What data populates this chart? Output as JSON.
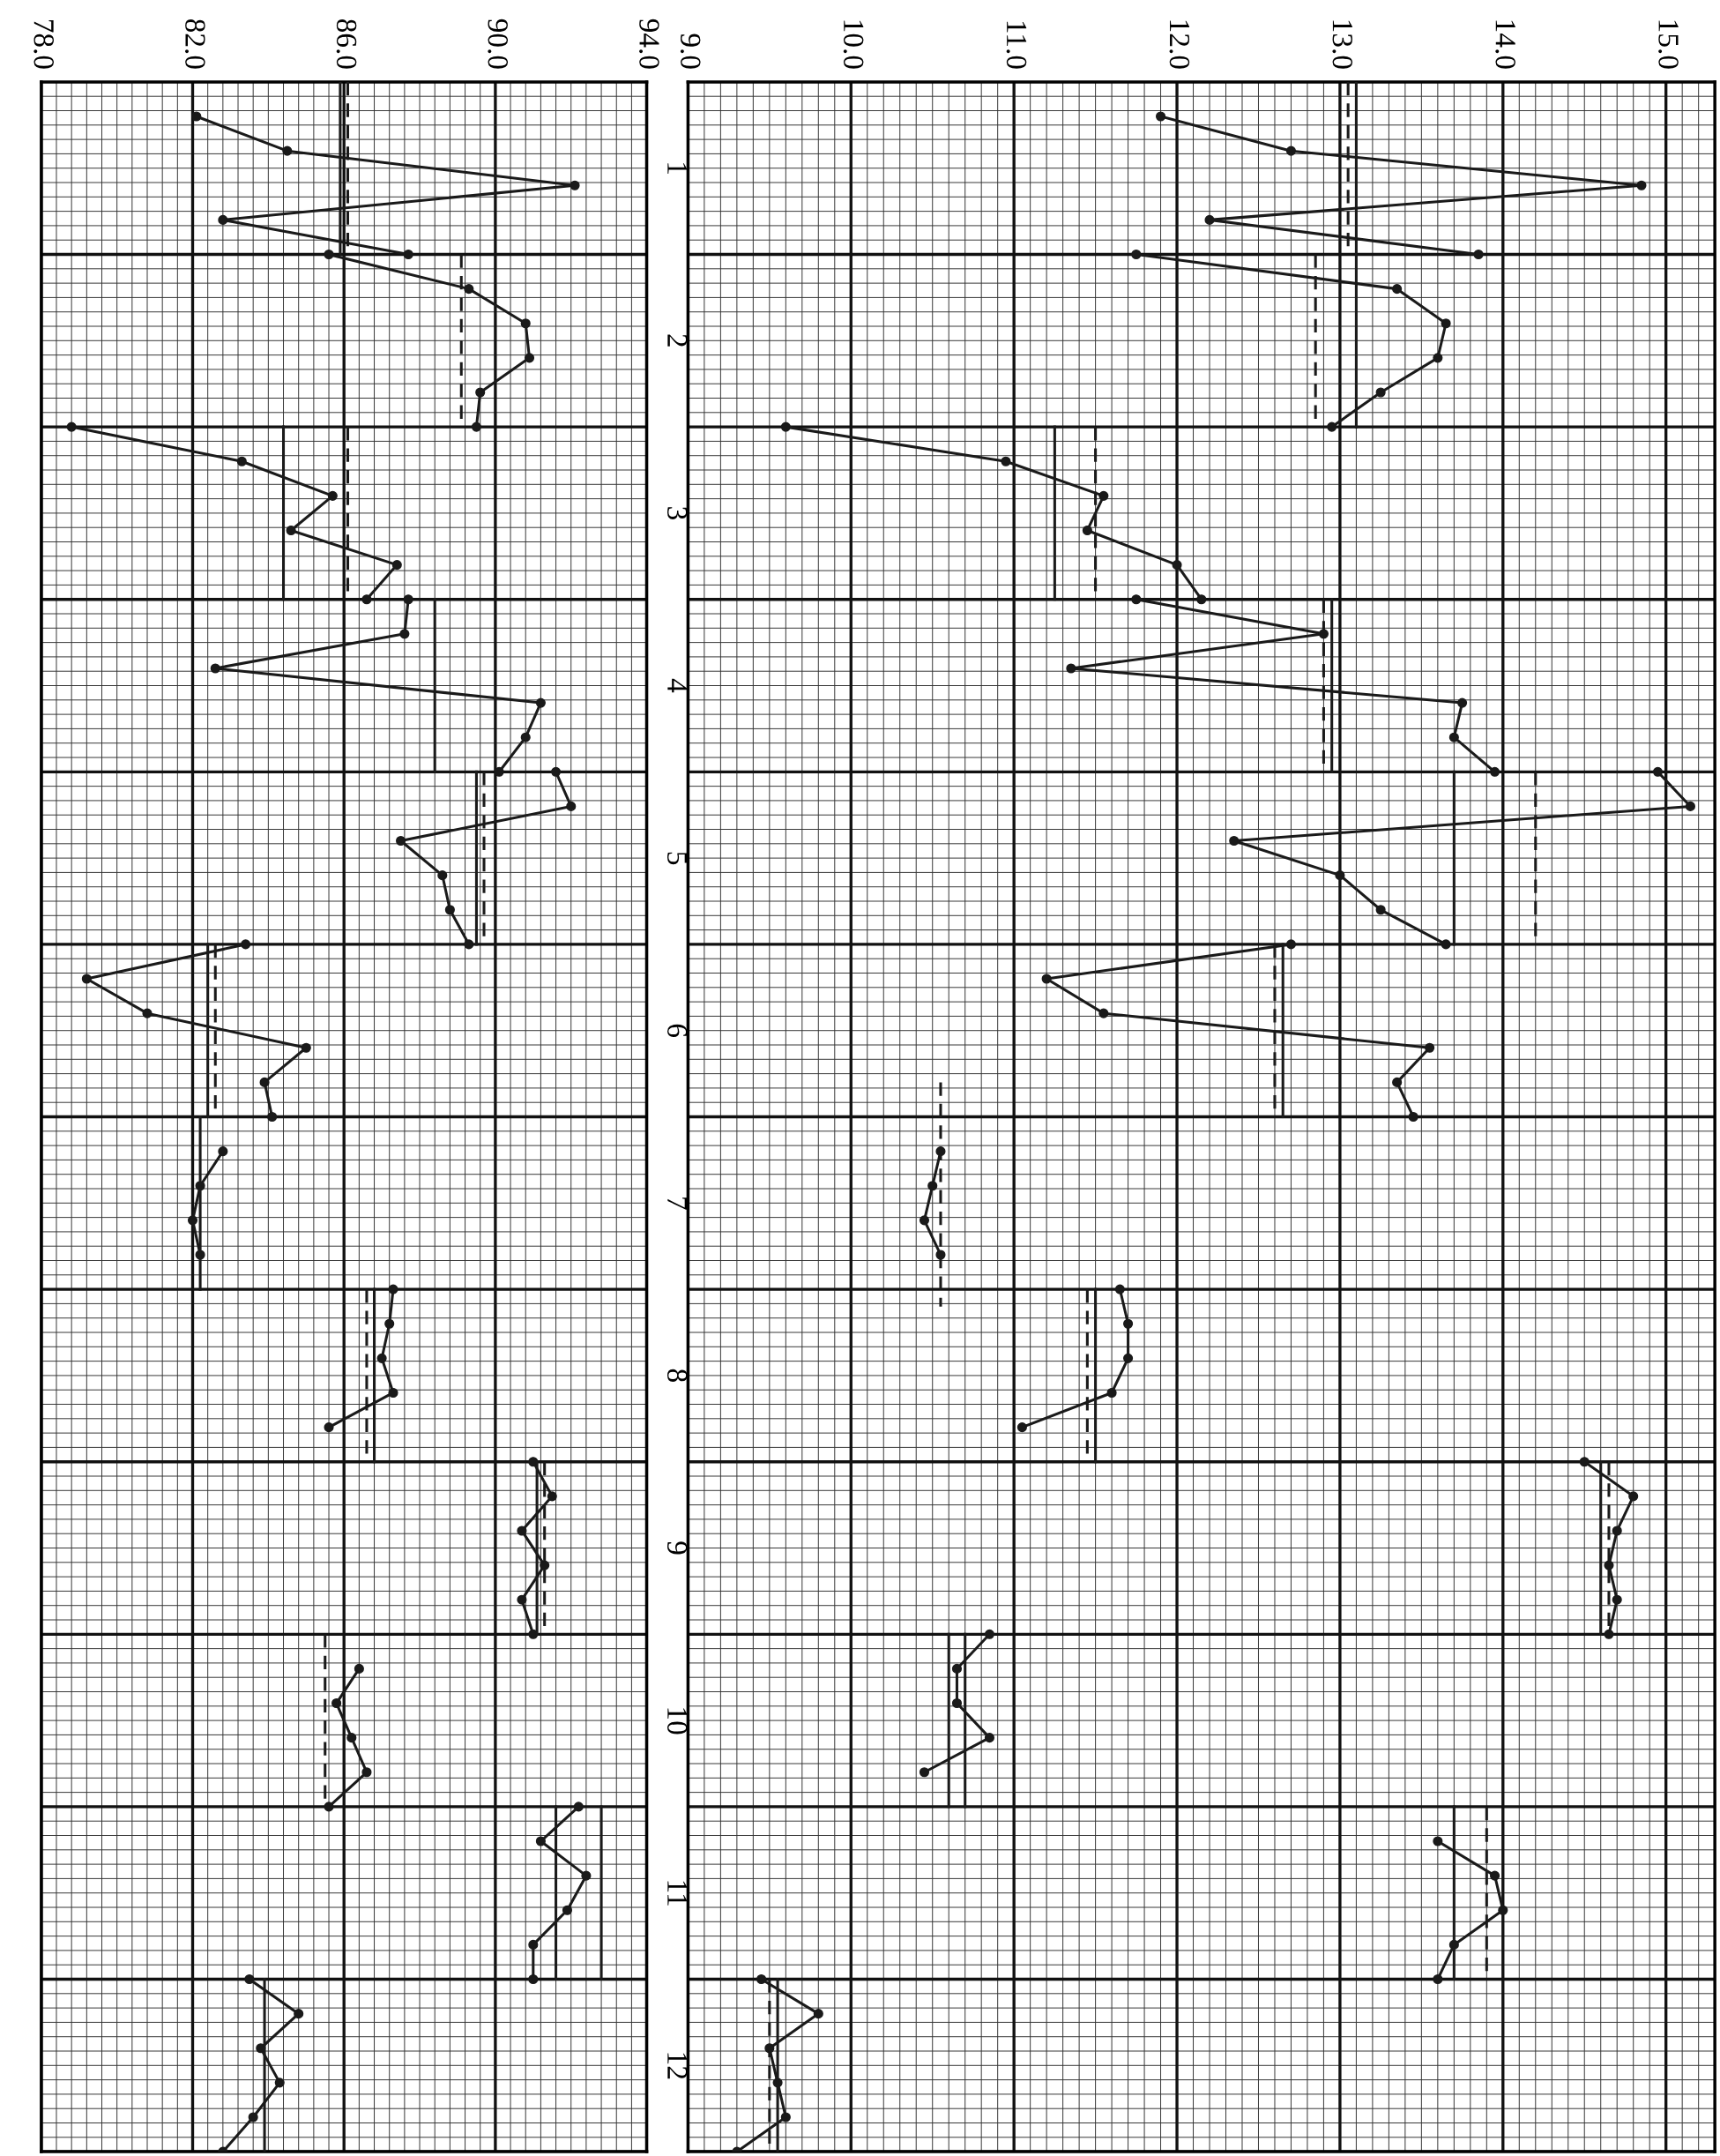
{
  "chart_data": [
    {
      "type": "line",
      "orientation": "horizontal",
      "marker": "circle",
      "grid": true,
      "xlim": [
        78,
        94
      ],
      "xticks": [
        {
          "value": 78,
          "label": "78.0"
        },
        {
          "value": 82,
          "label": "82.0"
        },
        {
          "value": 86,
          "label": "86.0"
        },
        {
          "value": 90,
          "label": "90.0"
        },
        {
          "value": 94,
          "label": "94.0"
        }
      ],
      "ylim": [
        12.5,
        0.5
      ],
      "yticks": [
        1,
        2,
        3,
        4,
        5,
        6,
        7,
        8,
        9,
        10,
        11,
        12
      ],
      "series": [
        {
          "color": "#1a1a1a",
          "x": [
            0.7,
            0.9,
            1.1,
            1.3,
            1.5
          ],
          "values": [
            82.1,
            84.5,
            92.1,
            82.8,
            87.7
          ]
        },
        {
          "color": "#1a1a1a",
          "x": [
            1.5,
            1.7,
            1.9,
            2.1,
            2.3,
            2.5
          ],
          "values": [
            85.6,
            89.3,
            90.8,
            90.9,
            89.6,
            89.5
          ]
        },
        {
          "color": "#1a1a1a",
          "x": [
            2.5,
            2.7,
            2.9,
            3.1,
            3.3,
            3.5
          ],
          "values": [
            78.8,
            83.3,
            85.7,
            84.6,
            87.4,
            86.6
          ]
        },
        {
          "color": "#1a1a1a",
          "x": [
            3.5,
            3.7,
            3.9,
            4.1,
            4.3,
            4.5
          ],
          "values": [
            87.7,
            87.6,
            82.6,
            91.2,
            90.8,
            90.1
          ]
        },
        {
          "color": "#1a1a1a",
          "x": [
            4.5,
            4.7,
            4.9,
            5.1,
            5.3,
            5.5
          ],
          "values": [
            91.6,
            92.0,
            87.5,
            88.6,
            88.8,
            89.3
          ]
        },
        {
          "color": "#1a1a1a",
          "x": [
            5.5,
            5.7,
            5.9,
            6.1,
            6.3,
            6.5
          ],
          "values": [
            83.4,
            79.2,
            80.8,
            85.0,
            83.9,
            84.1
          ]
        },
        {
          "color": "#1a1a1a",
          "x": [
            6.7,
            6.9,
            7.1,
            7.3
          ],
          "values": [
            82.8,
            82.2,
            82.0,
            82.2
          ]
        },
        {
          "color": "#1a1a1a",
          "x": [
            7.5,
            7.7,
            7.9,
            8.1,
            8.3
          ],
          "values": [
            87.3,
            87.2,
            87.0,
            87.3,
            85.6
          ]
        },
        {
          "color": "#1a1a1a",
          "x": [
            8.5,
            8.7,
            8.9,
            9.1,
            9.3,
            9.5
          ],
          "values": [
            91.0,
            91.5,
            90.7,
            91.3,
            90.7,
            91.0
          ]
        },
        {
          "color": "#1a1a1a",
          "x": [
            9.7,
            9.9,
            10.1,
            10.3,
            10.5
          ],
          "values": [
            86.4,
            85.8,
            86.2,
            86.6,
            85.6
          ]
        },
        {
          "color": "#1a1a1a",
          "x": [
            10.5,
            10.7,
            10.9,
            11.1,
            11.3,
            11.5
          ],
          "values": [
            92.2,
            91.2,
            92.4,
            91.9,
            91.0,
            91.0
          ]
        },
        {
          "color": "#1a1a1a",
          "x": [
            11.5,
            11.7,
            11.9,
            12.1,
            12.3,
            12.5
          ],
          "values": [
            83.5,
            84.8,
            83.8,
            84.3,
            83.6,
            82.8
          ]
        },
        {
          "color": "#1a1a1a",
          "marker": "none",
          "x": [
            0.5,
            1.5
          ],
          "values": [
            85.9,
            85.9
          ]
        },
        {
          "color": "#1a1a1a",
          "marker": "none",
          "line_style": "dashed",
          "x": [
            0.5,
            1.5
          ],
          "values": [
            86.1,
            86.1
          ]
        },
        {
          "color": "#1a1a1a",
          "marker": "none",
          "line_style": "dashed",
          "x": [
            1.5,
            2.5
          ],
          "values": [
            89.1,
            89.1
          ]
        },
        {
          "color": "#1a1a1a",
          "marker": "none",
          "x": [
            2.5,
            3.5
          ],
          "values": [
            84.4,
            84.4
          ]
        },
        {
          "color": "#1a1a1a",
          "marker": "none",
          "line_style": "dashed",
          "x": [
            2.5,
            3.5
          ],
          "values": [
            86.1,
            86.1
          ]
        },
        {
          "color": "#1a1a1a",
          "marker": "none",
          "x": [
            3.5,
            4.5
          ],
          "values": [
            88.4,
            88.4
          ]
        },
        {
          "color": "#1a1a1a",
          "marker": "none",
          "x": [
            4.5,
            5.5
          ],
          "values": [
            89.5,
            89.5
          ]
        },
        {
          "color": "#1a1a1a",
          "marker": "none",
          "line_style": "dashed",
          "x": [
            4.5,
            5.5
          ],
          "values": [
            89.7,
            89.7
          ]
        },
        {
          "color": "#1a1a1a",
          "marker": "none",
          "x": [
            5.5,
            6.5
          ],
          "values": [
            82.4,
            82.4
          ]
        },
        {
          "color": "#1a1a1a",
          "marker": "none",
          "line_style": "dashed",
          "x": [
            5.5,
            6.5
          ],
          "values": [
            82.6,
            82.6
          ]
        },
        {
          "color": "#1a1a1a",
          "marker": "none",
          "x": [
            6.5,
            7.5
          ],
          "values": [
            82.2,
            82.2
          ]
        },
        {
          "color": "#1a1a1a",
          "marker": "none",
          "x": [
            7.5,
            8.5
          ],
          "values": [
            86.8,
            86.8
          ]
        },
        {
          "color": "#1a1a1a",
          "marker": "none",
          "line_style": "dashed",
          "x": [
            7.5,
            8.5
          ],
          "values": [
            86.6,
            86.6
          ]
        },
        {
          "color": "#1a1a1a",
          "marker": "none",
          "x": [
            8.5,
            9.5
          ],
          "values": [
            91.1,
            91.1
          ]
        },
        {
          "color": "#1a1a1a",
          "marker": "none",
          "line_style": "dashed",
          "x": [
            8.5,
            9.5
          ],
          "values": [
            91.3,
            91.3
          ]
        },
        {
          "color": "#1a1a1a",
          "marker": "none",
          "line_style": "dashed",
          "x": [
            9.5,
            10.5
          ],
          "values": [
            85.5,
            85.5
          ]
        },
        {
          "color": "#1a1a1a",
          "marker": "none",
          "x": [
            10.5,
            11.5
          ],
          "values": [
            91.6,
            91.6
          ]
        },
        {
          "color": "#1a1a1a",
          "marker": "none",
          "x": [
            10.5,
            11.5
          ],
          "values": [
            92.8,
            92.8
          ]
        },
        {
          "color": "#1a1a1a",
          "marker": "none",
          "x": [
            11.5,
            12.5
          ],
          "values": [
            83.9,
            83.9
          ]
        }
      ]
    },
    {
      "type": "line",
      "orientation": "horizontal",
      "marker": "circle",
      "grid": true,
      "tick_labels": "x",
      "xlim": [
        9,
        15.3
      ],
      "xticks": [
        {
          "value": 9,
          "label": "9.0"
        },
        {
          "value": 10,
          "label": "10.0"
        },
        {
          "value": 11,
          "label": "11.0"
        },
        {
          "value": 12,
          "label": "12.0"
        },
        {
          "value": 13,
          "label": "13.0"
        },
        {
          "value": 14,
          "label": "14.0"
        },
        {
          "value": 15,
          "label": "15.0"
        }
      ],
      "ylim": [
        12.5,
        0.5
      ],
      "yticks": [
        1,
        2,
        3,
        4,
        5,
        6,
        7,
        8,
        9,
        10,
        11,
        12
      ],
      "series": [
        {
          "color": "#1a1a1a",
          "x": [
            0.7,
            0.9,
            1.1,
            1.3,
            1.5
          ],
          "values": [
            11.9,
            12.7,
            14.85,
            12.2,
            13.85
          ]
        },
        {
          "color": "#1a1a1a",
          "x": [
            1.5,
            1.7,
            1.9,
            2.1,
            2.3,
            2.5
          ],
          "values": [
            11.75,
            13.35,
            13.65,
            13.6,
            13.25,
            12.95
          ]
        },
        {
          "color": "#1a1a1a",
          "x": [
            2.5,
            2.7,
            2.9,
            3.1,
            3.3,
            3.5
          ],
          "values": [
            9.6,
            10.95,
            11.55,
            11.45,
            12.0,
            12.15
          ]
        },
        {
          "color": "#1a1a1a",
          "x": [
            3.5,
            3.7,
            3.9,
            4.1,
            4.3,
            4.5
          ],
          "values": [
            11.75,
            12.9,
            11.35,
            13.75,
            13.7,
            13.95
          ]
        },
        {
          "color": "#1a1a1a",
          "x": [
            4.5,
            4.7,
            4.9,
            5.1,
            5.3,
            5.5
          ],
          "values": [
            14.95,
            15.15,
            12.35,
            13.0,
            13.25,
            13.65
          ]
        },
        {
          "color": "#1a1a1a",
          "x": [
            5.5,
            5.7,
            5.9,
            6.1,
            6.3,
            6.5
          ],
          "values": [
            12.7,
            11.2,
            11.55,
            13.55,
            13.35,
            13.45
          ]
        },
        {
          "color": "#1a1a1a",
          "x": [
            6.7,
            6.9,
            7.1,
            7.3
          ],
          "values": [
            10.55,
            10.5,
            10.45,
            10.55
          ]
        },
        {
          "color": "#1a1a1a",
          "x": [
            7.5,
            7.7,
            7.9,
            8.1,
            8.3
          ],
          "values": [
            11.65,
            11.7,
            11.7,
            11.6,
            11.05
          ]
        },
        {
          "color": "#1a1a1a",
          "x": [
            8.5,
            8.7,
            8.9,
            9.1,
            9.3,
            9.5
          ],
          "values": [
            14.5,
            14.8,
            14.7,
            14.65,
            14.7,
            14.65
          ]
        },
        {
          "color": "#1a1a1a",
          "x": [
            9.5,
            9.7,
            9.9,
            10.1,
            10.3
          ],
          "values": [
            10.85,
            10.65,
            10.65,
            10.85,
            10.45
          ]
        },
        {
          "color": "#1a1a1a",
          "x": [
            10.7,
            10.9,
            11.1,
            11.3,
            11.5
          ],
          "values": [
            13.6,
            13.95,
            14.0,
            13.7,
            13.6
          ]
        },
        {
          "color": "#1a1a1a",
          "x": [
            11.5,
            11.7,
            11.9,
            12.1,
            12.3,
            12.5
          ],
          "values": [
            9.45,
            9.8,
            9.5,
            9.55,
            9.6,
            9.3
          ]
        },
        {
          "color": "#1a1a1a",
          "marker": "none",
          "x": [
            0.5,
            2.5
          ],
          "values": [
            13.1,
            13.1
          ]
        },
        {
          "color": "#1a1a1a",
          "marker": "none",
          "line_style": "dashed",
          "x": [
            0.5,
            1.5
          ],
          "values": [
            13.05,
            13.05
          ]
        },
        {
          "color": "#1a1a1a",
          "marker": "none",
          "line_style": "dashed",
          "x": [
            1.5,
            2.5
          ],
          "values": [
            12.85,
            12.85
          ]
        },
        {
          "color": "#1a1a1a",
          "marker": "none",
          "x": [
            2.5,
            3.5
          ],
          "values": [
            11.25,
            11.25
          ]
        },
        {
          "color": "#1a1a1a",
          "marker": "none",
          "line_style": "dashed",
          "x": [
            2.5,
            3.5
          ],
          "values": [
            11.5,
            11.5
          ]
        },
        {
          "color": "#1a1a1a",
          "marker": "none",
          "x": [
            3.5,
            4.5
          ],
          "values": [
            12.95,
            12.95
          ]
        },
        {
          "color": "#1a1a1a",
          "marker": "none",
          "line_style": "dashed",
          "x": [
            3.5,
            4.5
          ],
          "values": [
            12.9,
            12.9
          ]
        },
        {
          "color": "#1a1a1a",
          "marker": "none",
          "x": [
            4.5,
            5.5
          ],
          "values": [
            13.7,
            13.7
          ]
        },
        {
          "color": "#1a1a1a",
          "marker": "none",
          "line_style": "dashed",
          "x": [
            4.5,
            5.5
          ],
          "values": [
            14.2,
            14.2
          ]
        },
        {
          "color": "#1a1a1a",
          "marker": "none",
          "x": [
            5.5,
            6.5
          ],
          "values": [
            12.65,
            12.65
          ]
        },
        {
          "color": "#1a1a1a",
          "marker": "none",
          "line_style": "dashed",
          "x": [
            5.5,
            6.5
          ],
          "values": [
            12.6,
            12.6
          ]
        },
        {
          "color": "#1a1a1a",
          "marker": "none",
          "line_style": "dashed",
          "x": [
            6.3,
            7.6
          ],
          "values": [
            10.55,
            10.55
          ]
        },
        {
          "color": "#1a1a1a",
          "marker": "none",
          "x": [
            7.5,
            8.5
          ],
          "values": [
            11.5,
            11.5
          ]
        },
        {
          "color": "#1a1a1a",
          "marker": "none",
          "line_style": "dashed",
          "x": [
            7.5,
            8.5
          ],
          "values": [
            11.45,
            11.45
          ]
        },
        {
          "color": "#1a1a1a",
          "marker": "none",
          "x": [
            8.5,
            9.5
          ],
          "values": [
            14.6,
            14.6
          ]
        },
        {
          "color": "#1a1a1a",
          "marker": "none",
          "line_style": "dashed",
          "x": [
            8.5,
            9.5
          ],
          "values": [
            14.65,
            14.65
          ]
        },
        {
          "color": "#1a1a1a",
          "marker": "none",
          "x": [
            9.5,
            10.5
          ],
          "values": [
            10.6,
            10.6
          ]
        },
        {
          "color": "#1a1a1a",
          "marker": "none",
          "x": [
            9.5,
            10.5
          ],
          "values": [
            10.7,
            10.7
          ]
        },
        {
          "color": "#1a1a1a",
          "marker": "none",
          "x": [
            10.5,
            11.5
          ],
          "values": [
            13.7,
            13.7
          ]
        },
        {
          "color": "#1a1a1a",
          "marker": "none",
          "line_style": "dashed",
          "x": [
            10.5,
            11.5
          ],
          "values": [
            13.9,
            13.9
          ]
        },
        {
          "color": "#1a1a1a",
          "marker": "none",
          "x": [
            11.5,
            12.5
          ],
          "values": [
            9.55,
            9.55
          ]
        },
        {
          "color": "#1a1a1a",
          "marker": "none",
          "line_style": "dashed",
          "x": [
            11.5,
            12.5
          ],
          "values": [
            9.5,
            9.5
          ]
        }
      ]
    }
  ]
}
